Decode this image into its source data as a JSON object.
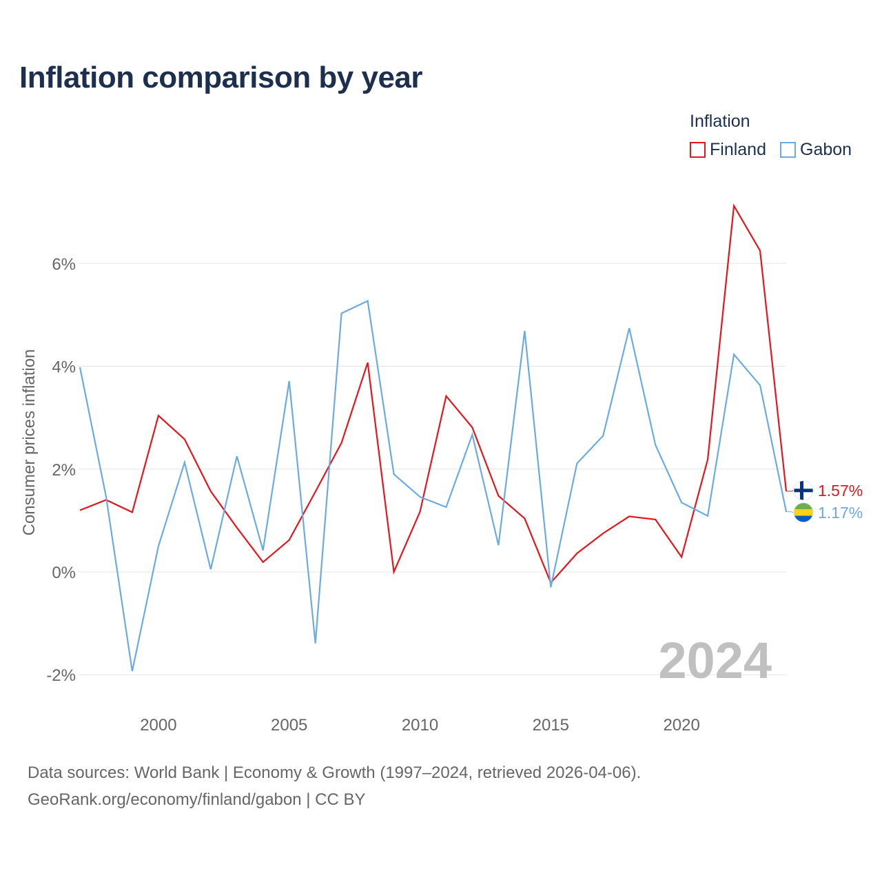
{
  "title": "Inflation comparison by year",
  "legend": {
    "title": "Inflation",
    "items": [
      {
        "name": "Finland",
        "color": "#e8141c"
      },
      {
        "name": "Gabon",
        "color": "#6aabe3"
      }
    ]
  },
  "footer": {
    "line1": "Data sources: World Bank | Economy & Growth (1997–2024, retrieved 2026-04-06).",
    "line2": "GeoRank.org/economy/finland/gabon | CC BY"
  },
  "chart_data": {
    "type": "line",
    "title": "Inflation comparison by year",
    "xlabel": "",
    "ylabel": "Consumer prices inflation",
    "year_watermark": "2024",
    "x": [
      1997,
      1998,
      1999,
      2000,
      2001,
      2002,
      2003,
      2004,
      2005,
      2006,
      2007,
      2008,
      2009,
      2010,
      2011,
      2012,
      2013,
      2014,
      2015,
      2016,
      2017,
      2018,
      2019,
      2020,
      2021,
      2022,
      2023,
      2024
    ],
    "xlim": [
      1997,
      2024
    ],
    "ylim": [
      -2.6,
      7.8
    ],
    "x_ticks": [
      2000,
      2005,
      2010,
      2015,
      2020
    ],
    "y_ticks": [
      -2,
      0,
      2,
      4,
      6
    ],
    "y_tick_labels": [
      "-2%",
      "0%",
      "2%",
      "4%",
      "6%"
    ],
    "grid": true,
    "legend_position": "top-right",
    "series": [
      {
        "name": "Finland",
        "color": "#e8141c",
        "values": [
          1.2,
          1.4,
          1.16,
          3.04,
          2.58,
          1.57,
          0.86,
          0.19,
          0.62,
          1.56,
          2.51,
          4.07,
          0.0,
          1.17,
          3.42,
          2.81,
          1.48,
          1.04,
          -0.21,
          0.36,
          0.75,
          1.08,
          1.02,
          0.29,
          2.19,
          7.12,
          6.25,
          1.57
        ],
        "end_label": "1.57%",
        "flag": "finland"
      },
      {
        "name": "Gabon",
        "color": "#6aabe3",
        "values": [
          3.98,
          1.46,
          -1.93,
          0.5,
          2.13,
          0.05,
          2.25,
          0.42,
          3.71,
          -1.39,
          5.03,
          5.27,
          1.9,
          1.46,
          1.26,
          2.67,
          0.52,
          4.69,
          -0.3,
          2.11,
          2.65,
          4.74,
          2.47,
          1.35,
          1.09,
          4.23,
          3.63,
          1.17
        ],
        "end_label": "1.17%",
        "flag": "gabon"
      }
    ]
  }
}
